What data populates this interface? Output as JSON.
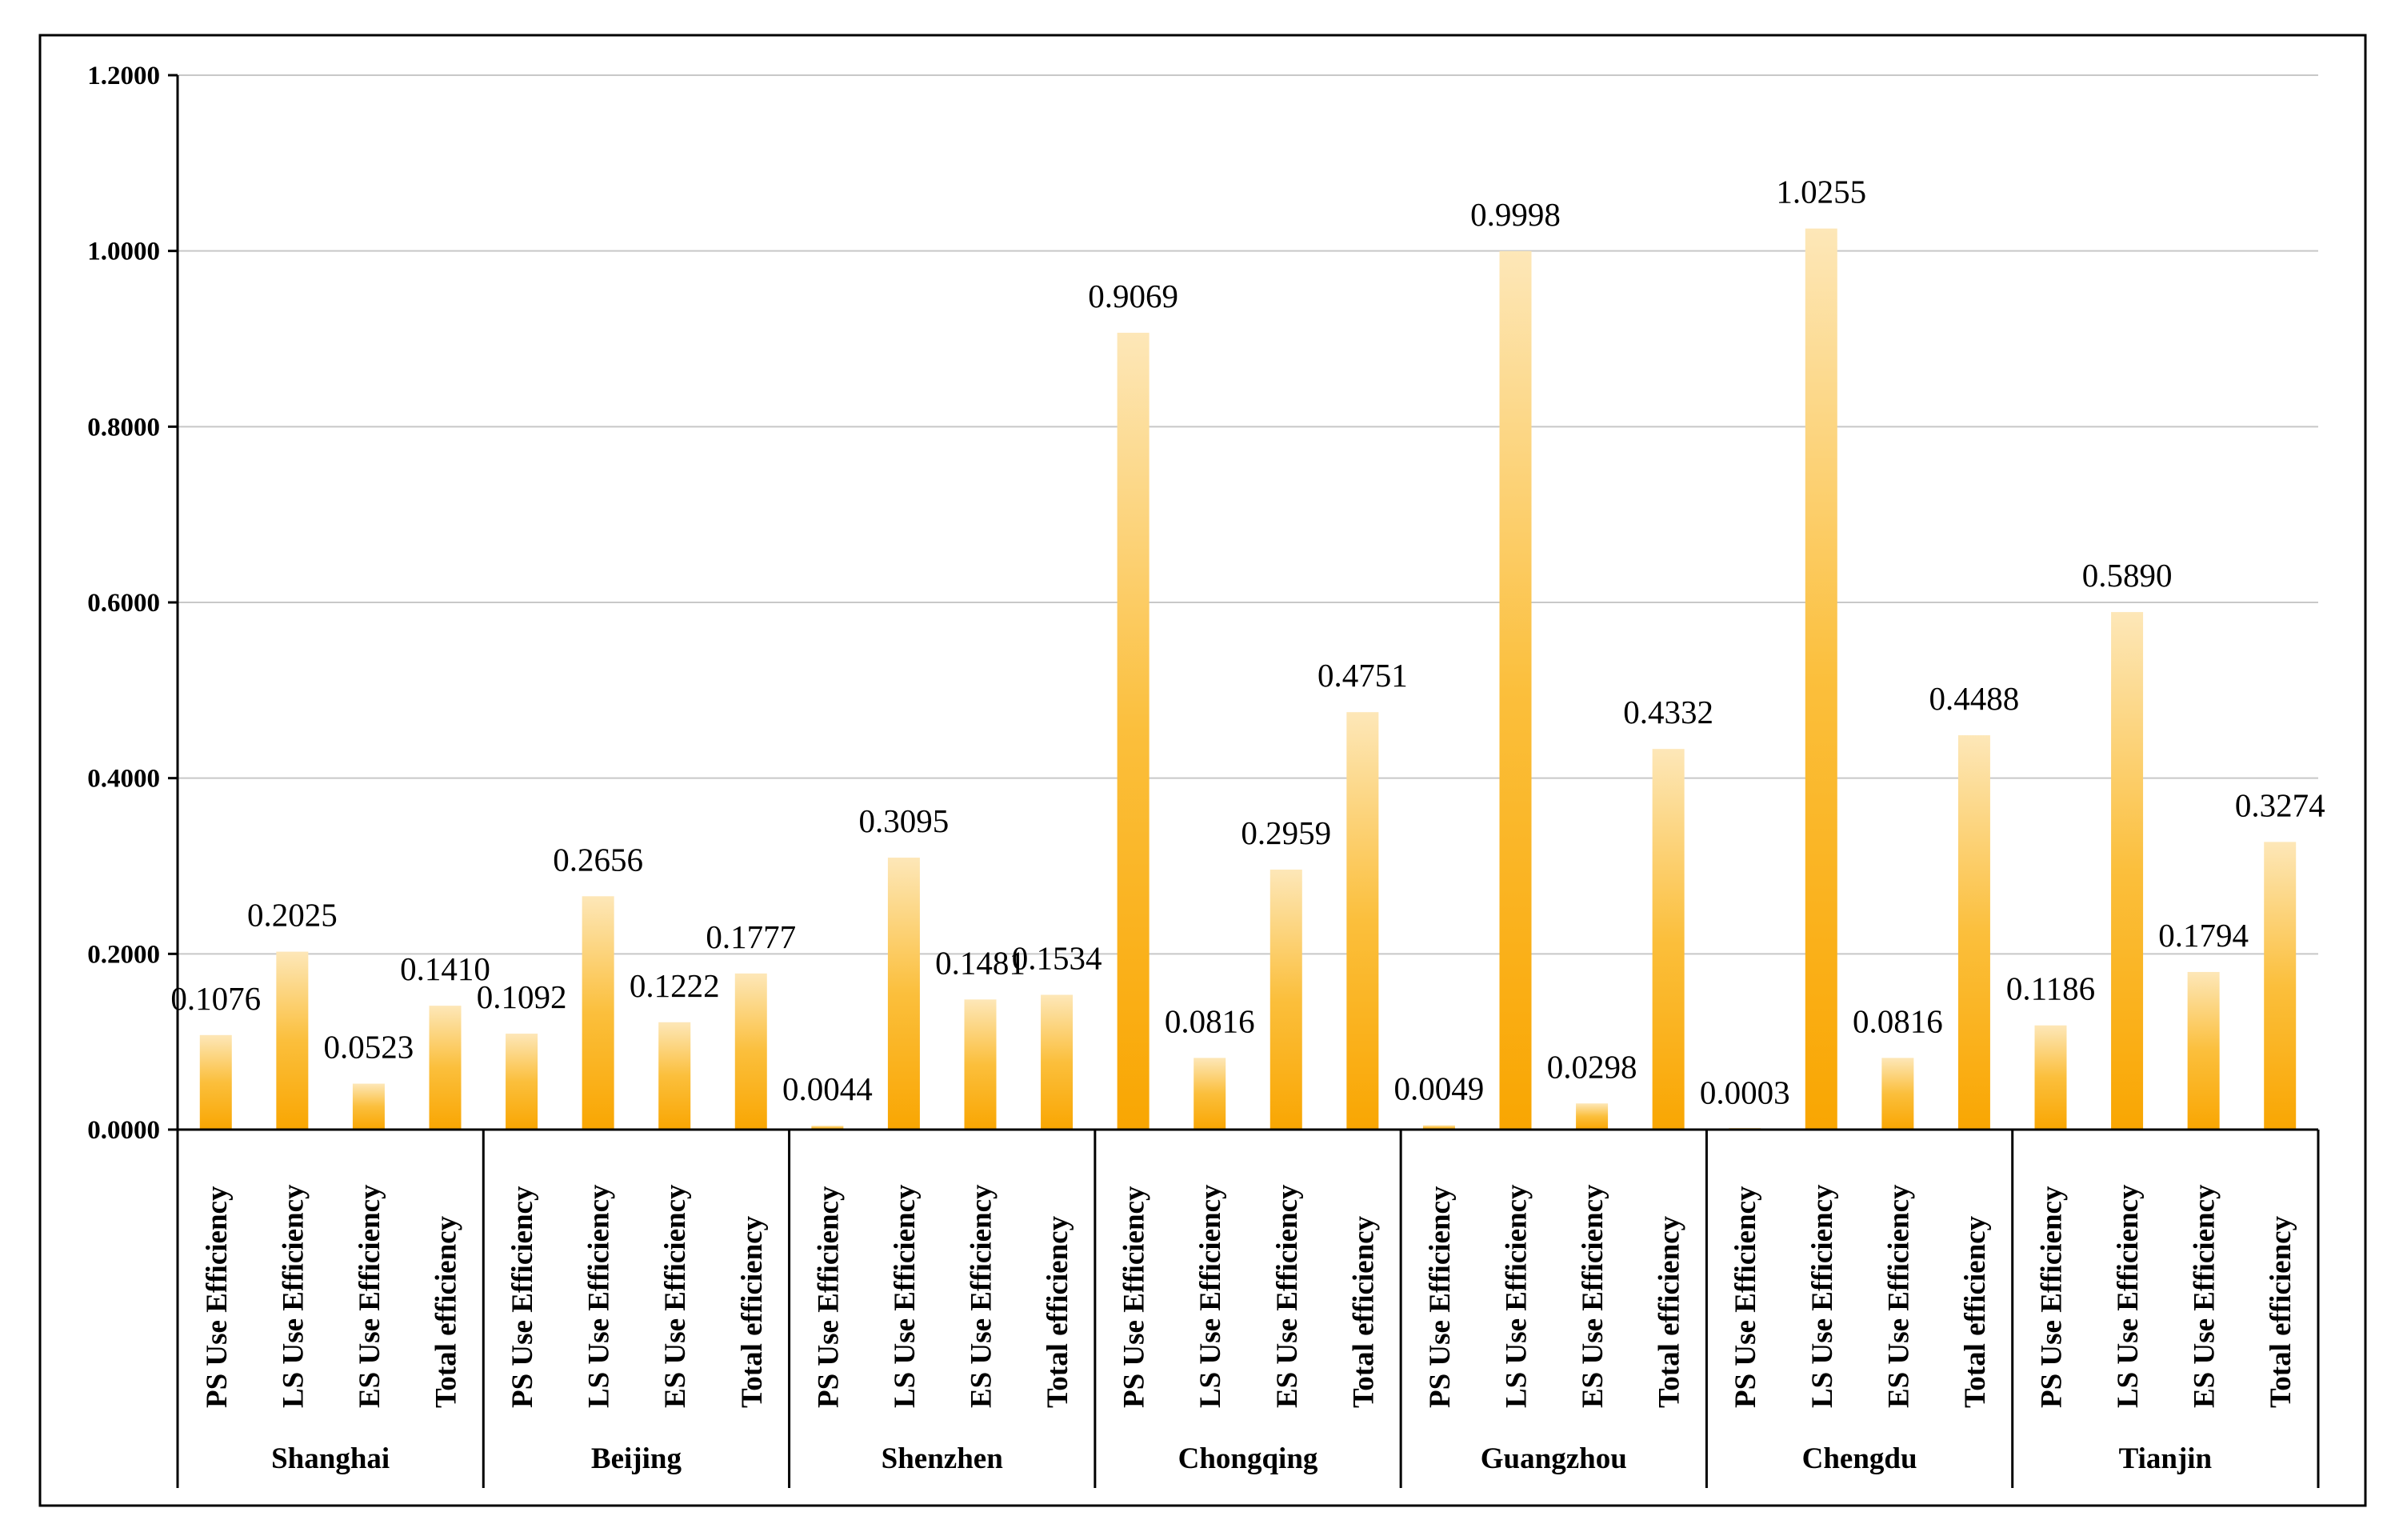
{
  "chart_data": {
    "type": "bar",
    "title": "",
    "xlabel": "",
    "ylabel": "",
    "ylim": [
      0,
      1.2
    ],
    "yticks": [
      "0.0000",
      "0.2000",
      "0.4000",
      "0.6000",
      "0.8000",
      "1.0000",
      "1.2000"
    ],
    "grid": true,
    "groups": [
      "Shanghai",
      "Beijing",
      "Shenzhen",
      "Chongqing",
      "Guangzhou",
      "Chengdu",
      "Tianjin"
    ],
    "categories": [
      "PS Use Efficiency",
      "LS Use Efficiency",
      "ES Use Efficiency",
      "Total efficiency"
    ],
    "values": [
      [
        0.1076,
        0.2025,
        0.0523,
        0.141
      ],
      [
        0.1092,
        0.2656,
        0.1222,
        0.1777
      ],
      [
        0.0044,
        0.3095,
        0.1481,
        0.1534
      ],
      [
        0.9069,
        0.0816,
        0.2959,
        0.4751
      ],
      [
        0.0049,
        0.9998,
        0.0298,
        0.4332
      ],
      [
        0.0003,
        1.0255,
        0.0816,
        0.4488
      ],
      [
        0.1186,
        0.589,
        0.1794,
        0.3274
      ]
    ],
    "value_labels": [
      [
        "0.1076",
        "0.2025",
        "0.0523",
        "0.1410"
      ],
      [
        "0.1092",
        "0.2656",
        "0.1222",
        "0.1777"
      ],
      [
        "0.0044",
        "0.3095",
        "0.1481",
        "0.1534"
      ],
      [
        "0.9069",
        "0.0816",
        "0.2959",
        "0.4751"
      ],
      [
        "0.0049",
        "0.9998",
        "0.0298",
        "0.4332"
      ],
      [
        "0.0003",
        "1.0255",
        "0.0816",
        "0.4488"
      ],
      [
        "0.1186",
        "0.5890",
        "0.1794",
        "0.3274"
      ]
    ],
    "colors": {
      "bar_bottom": "#f9a602",
      "bar_mid": "#fbbf3c",
      "bar_top": "#fde7b8",
      "grid": "#c8c8c8",
      "axis": "#000000",
      "frame": "#000000"
    }
  }
}
